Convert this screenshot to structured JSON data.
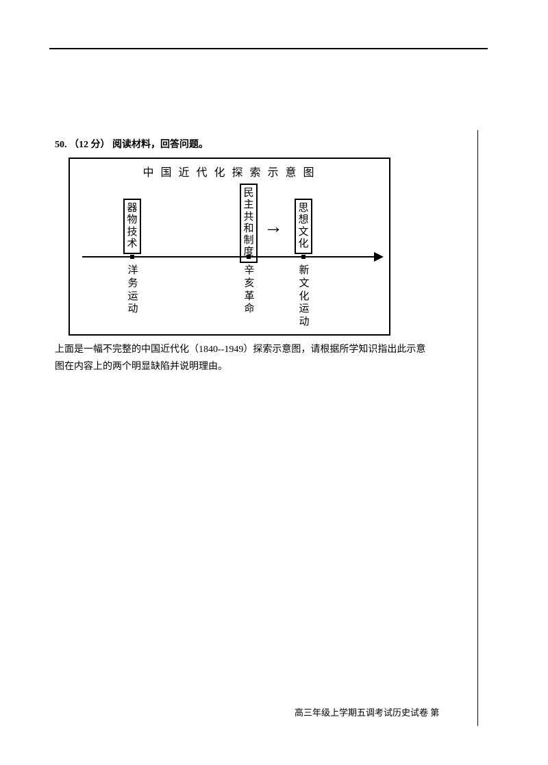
{
  "question": {
    "number": "50.",
    "points": "（12 分）",
    "prompt": "阅读材料，回答问题。"
  },
  "diagram": {
    "title": "中 国 近 代 化 探 索 示 意 图",
    "nodes": {
      "n1": [
        "器",
        "物",
        "技",
        "术"
      ],
      "n2": [
        "民",
        "主",
        "共",
        "和",
        "制",
        "度"
      ],
      "n3": [
        "思",
        "想",
        "文",
        "化"
      ]
    },
    "arrow_glyph": "→",
    "below_labels": {
      "b1": [
        "洋",
        "务",
        "运",
        "动"
      ],
      "b2": [
        "辛",
        "亥",
        "革",
        "命"
      ],
      "b3": [
        "新",
        "文",
        "化",
        "运",
        "动"
      ]
    }
  },
  "body": {
    "line1": "上面是一幅不完整的中国近代化（1840--1949）探索示意图，请根据所学知识指出此示意",
    "line2": "图在内容上的两个明显缺陷并说明理由。"
  },
  "footer": "高三年级上学期五调考试历史试卷  第"
}
